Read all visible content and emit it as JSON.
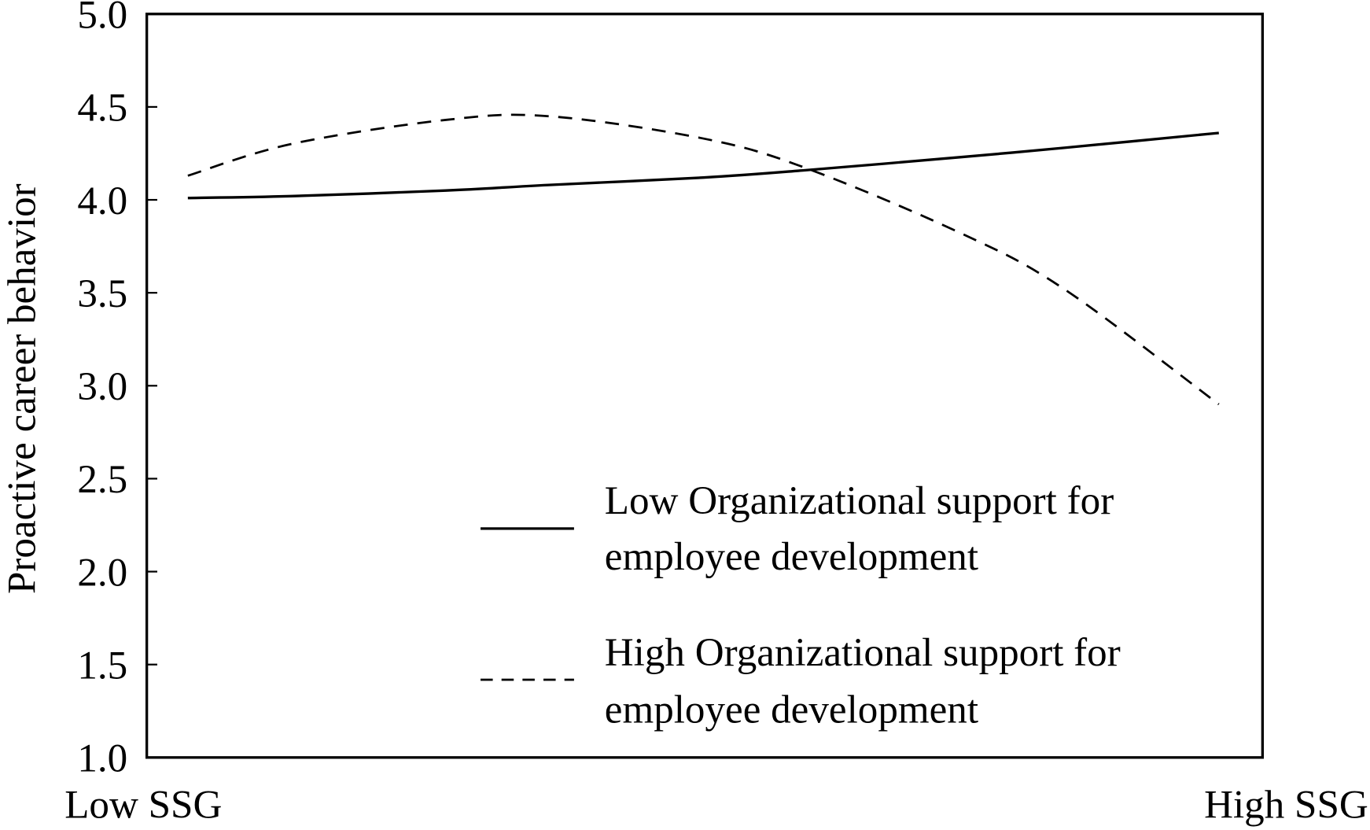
{
  "chart_data": {
    "type": "line",
    "title": "",
    "xlabel": "",
    "ylabel": "Proactive career behavior",
    "x_tick_labels": [
      "Low SSG",
      "High SSG"
    ],
    "x": [
      0,
      0.1,
      0.25,
      0.35,
      0.5,
      0.6,
      0.75,
      0.85,
      1
    ],
    "ylim": [
      1.0,
      5.0
    ],
    "yticks": [
      "1.0",
      "1.5",
      "2.0",
      "2.5",
      "3.0",
      "3.5",
      "4.0",
      "4.5",
      "5.0"
    ],
    "grid": false,
    "legend_position": "bottom-right",
    "series": [
      {
        "name": "Low Organizational support for employee development",
        "name_lines": [
          "Low Organizational support for",
          "employee development"
        ],
        "style": "solid",
        "values": [
          4.01,
          4.02,
          4.05,
          4.08,
          4.12,
          4.16,
          4.23,
          4.28,
          4.36
        ]
      },
      {
        "name": "High Organizational support for employee development",
        "name_lines": [
          "High Organizational support for",
          "employee development"
        ],
        "style": "dashed",
        "values": [
          4.13,
          4.3,
          4.43,
          4.45,
          4.33,
          4.17,
          3.82,
          3.52,
          2.9
        ]
      }
    ]
  }
}
